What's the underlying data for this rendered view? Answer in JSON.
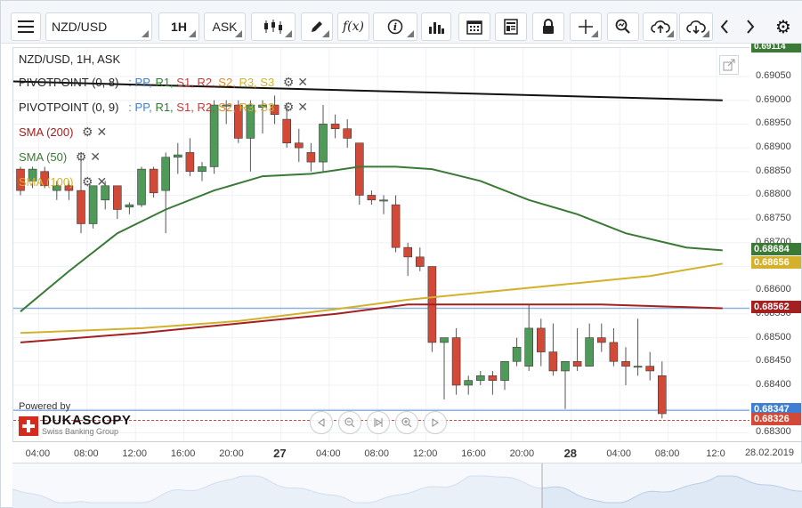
{
  "toolbar": {
    "instrument": "NZD/USD",
    "timeframe": "1H",
    "side": "ASK",
    "buttons": [
      {
        "name": "menu-icon"
      },
      {
        "name": "candle-type-icon"
      },
      {
        "name": "draw-pencil-icon"
      },
      {
        "name": "function-icon",
        "label": "f(x)"
      },
      {
        "name": "info-icon"
      },
      {
        "name": "bar-chart-icon"
      },
      {
        "name": "calendar-icon"
      },
      {
        "name": "news-icon"
      },
      {
        "name": "lock-icon"
      },
      {
        "name": "crosshair-icon"
      },
      {
        "name": "zoom-icon"
      },
      {
        "name": "upload-cloud-icon"
      },
      {
        "name": "download-cloud-icon"
      },
      {
        "name": "prev-arrow-icon"
      },
      {
        "name": "next-arrow-icon"
      },
      {
        "name": "gear-icon"
      }
    ]
  },
  "legend": {
    "title": "NZD/USD, 1H, ASK",
    "pivot1": {
      "label": "PIVOTPOINT (0, 8)",
      "levels": [
        ": PP,",
        "R1,",
        "S1,",
        "R2,",
        "S2,",
        "R3,",
        "S3"
      ]
    },
    "pivot2": {
      "label": "PIVOTPOINT (0, 9)",
      "levels": [
        ": PP,",
        "R1,",
        "S1,",
        "R2,",
        "S2,",
        "R3,",
        "S3"
      ]
    },
    "sma200": "SMA (200)",
    "sma50": "SMA (50)",
    "sma100": "SMA (100)"
  },
  "branding": {
    "powered_by": "Powered by",
    "company": "DUKASCOPY",
    "tagline": "Swiss Banking Group"
  },
  "colors": {
    "up": "#4f9a59",
    "down": "#d24a37",
    "sma50": "#3a7a35",
    "sma100": "#d4b12c",
    "sma200": "#a32020",
    "hline": "#8fb1de",
    "trend": "#111111",
    "pp": "#3f7fd3",
    "r": "#2f7d2f",
    "s": "#c93838",
    "r2": "#c93838",
    "s2": "#e08a1e",
    "r3": "#d4b12c",
    "s3": "#d4b12c"
  },
  "yaxis": {
    "ticks": [
      "0.69050",
      "0.69000",
      "0.68950",
      "0.68900",
      "0.68850",
      "0.68800",
      "0.68750",
      "0.68700",
      "0.68650",
      "0.68600",
      "0.68550",
      "0.68500",
      "0.68450",
      "0.68400",
      "0.68350",
      "0.68300"
    ],
    "tick_values": [
      0.6905,
      0.69,
      0.6895,
      0.689,
      0.6885,
      0.688,
      0.6875,
      0.687,
      0.6865,
      0.686,
      0.6855,
      0.685,
      0.6845,
      0.684,
      0.6835,
      0.683
    ],
    "top_cut": "0.69114",
    "badges": [
      {
        "value": "0.68684",
        "color": "#3a7a35",
        "price": 0.68684
      },
      {
        "value": "0.68656",
        "color": "#d4b12c",
        "price": 0.68656
      },
      {
        "value": "0.68562",
        "color": "#a32020",
        "price": 0.68562
      },
      {
        "value": "0.68347",
        "color": "#3f7fd3",
        "price": 0.68347
      },
      {
        "value": "0.68326",
        "color": "#d24a37",
        "price": 0.68326
      }
    ]
  },
  "xaxis": {
    "labels": [
      {
        "t": "04:00",
        "i": 1.5
      },
      {
        "t": "08:00",
        "i": 5.5
      },
      {
        "t": "12:00",
        "i": 9.5
      },
      {
        "t": "16:00",
        "i": 13.5
      },
      {
        "t": "20:00",
        "i": 17.5
      },
      {
        "t": "27",
        "i": 21.5,
        "major": true
      },
      {
        "t": "04:00",
        "i": 25.5
      },
      {
        "t": "08:00",
        "i": 29.5
      },
      {
        "t": "12:00",
        "i": 33.5
      },
      {
        "t": "16:00",
        "i": 37.5
      },
      {
        "t": "20:00",
        "i": 41.5
      },
      {
        "t": "28",
        "i": 45.5,
        "major": true
      },
      {
        "t": "04:00",
        "i": 49.5
      },
      {
        "t": "08:00",
        "i": 53.5
      },
      {
        "t": "12:0",
        "i": 57.5
      }
    ],
    "date_box": "28.02.2019"
  },
  "chart_data": {
    "type": "candlestick",
    "instrument": "NZD/USD",
    "timeframe": "1H",
    "ylim": [
      0.6828,
      0.6911
    ],
    "candles": [
      [
        0.68855,
        0.6886,
        0.688,
        0.6881
      ],
      [
        0.6883,
        0.6886,
        0.68815,
        0.68855
      ],
      [
        0.6885,
        0.6886,
        0.68815,
        0.6882
      ],
      [
        0.6881,
        0.6883,
        0.6879,
        0.6882
      ],
      [
        0.6882,
        0.6883,
        0.6879,
        0.6881
      ],
      [
        0.6881,
        0.6889,
        0.6872,
        0.6874
      ],
      [
        0.6874,
        0.6882,
        0.6873,
        0.6882
      ],
      [
        0.6879,
        0.6883,
        0.6877,
        0.6882
      ],
      [
        0.6882,
        0.6882,
        0.6875,
        0.6877
      ],
      [
        0.68775,
        0.68785,
        0.6876,
        0.6878
      ],
      [
        0.6878,
        0.6886,
        0.68775,
        0.68855
      ],
      [
        0.68855,
        0.6886,
        0.68795,
        0.68805
      ],
      [
        0.6881,
        0.6889,
        0.6872,
        0.6888
      ],
      [
        0.6888,
        0.6891,
        0.68845,
        0.68885
      ],
      [
        0.6889,
        0.6892,
        0.6884,
        0.6885
      ],
      [
        0.6885,
        0.6887,
        0.6883,
        0.6886
      ],
      [
        0.6886,
        0.69,
        0.68845,
        0.6899
      ],
      [
        0.6899,
        0.69,
        0.6895,
        0.6899
      ],
      [
        0.6899,
        0.69,
        0.6891,
        0.6892
      ],
      [
        0.6892,
        0.69,
        0.6885,
        0.6899
      ],
      [
        0.68985,
        0.69,
        0.6893,
        0.6899
      ],
      [
        0.6899,
        0.6901,
        0.6895,
        0.6897
      ],
      [
        0.6896,
        0.6899,
        0.689,
        0.6891
      ],
      [
        0.6891,
        0.6894,
        0.6887,
        0.689
      ],
      [
        0.6889,
        0.6891,
        0.6885,
        0.6887
      ],
      [
        0.6887,
        0.6899,
        0.6885,
        0.6895
      ],
      [
        0.6895,
        0.6897,
        0.6892,
        0.6894
      ],
      [
        0.6894,
        0.6896,
        0.689,
        0.6892
      ],
      [
        0.6891,
        0.6891,
        0.6878,
        0.688
      ],
      [
        0.688,
        0.6881,
        0.6878,
        0.6879
      ],
      [
        0.6879,
        0.688,
        0.6876,
        0.6879
      ],
      [
        0.6878,
        0.688,
        0.6868,
        0.6869
      ],
      [
        0.6869,
        0.687,
        0.6863,
        0.6867
      ],
      [
        0.6867,
        0.6869,
        0.6864,
        0.6865
      ],
      [
        0.6865,
        0.6865,
        0.6847,
        0.6849
      ],
      [
        0.6849,
        0.685,
        0.6837,
        0.685
      ],
      [
        0.685,
        0.6852,
        0.6838,
        0.684
      ],
      [
        0.684,
        0.6842,
        0.6838,
        0.6841
      ],
      [
        0.6841,
        0.6843,
        0.684,
        0.6842
      ],
      [
        0.6842,
        0.6843,
        0.6838,
        0.6841
      ],
      [
        0.6841,
        0.6845,
        0.6839,
        0.6845
      ],
      [
        0.6845,
        0.685,
        0.6844,
        0.6848
      ],
      [
        0.6844,
        0.6857,
        0.6843,
        0.6852
      ],
      [
        0.6852,
        0.6854,
        0.6844,
        0.6847
      ],
      [
        0.6847,
        0.6853,
        0.6842,
        0.6843
      ],
      [
        0.6843,
        0.6845,
        0.6835,
        0.6845
      ],
      [
        0.6845,
        0.6852,
        0.6843,
        0.6844
      ],
      [
        0.6844,
        0.6853,
        0.6844,
        0.685
      ],
      [
        0.685,
        0.6853,
        0.6847,
        0.6849
      ],
      [
        0.6849,
        0.6852,
        0.6844,
        0.6845
      ],
      [
        0.6845,
        0.6848,
        0.684,
        0.6844
      ],
      [
        0.6844,
        0.6854,
        0.6842,
        0.6844
      ],
      [
        0.6844,
        0.6847,
        0.6841,
        0.6843
      ],
      [
        0.6842,
        0.6845,
        0.6833,
        0.6834
      ]
    ],
    "sma50": [
      [
        0,
        0.68555
      ],
      [
        4,
        0.6864
      ],
      [
        8,
        0.6872
      ],
      [
        12,
        0.6877
      ],
      [
        16,
        0.6881
      ],
      [
        20,
        0.6884
      ],
      [
        24,
        0.68845
      ],
      [
        28,
        0.6886
      ],
      [
        31,
        0.6886
      ],
      [
        34,
        0.68855
      ],
      [
        38,
        0.6883
      ],
      [
        42,
        0.6879
      ],
      [
        46,
        0.6876
      ],
      [
        50,
        0.6872
      ],
      [
        55,
        0.6869
      ],
      [
        58,
        0.68684
      ]
    ],
    "sma100": [
      [
        0,
        0.6851
      ],
      [
        10,
        0.6852
      ],
      [
        18,
        0.68535
      ],
      [
        26,
        0.6856
      ],
      [
        32,
        0.6858
      ],
      [
        38,
        0.68595
      ],
      [
        46,
        0.68615
      ],
      [
        52,
        0.6863
      ],
      [
        58,
        0.68656
      ]
    ],
    "sma200": [
      [
        0,
        0.6849
      ],
      [
        10,
        0.6851
      ],
      [
        18,
        0.6853
      ],
      [
        26,
        0.6855
      ],
      [
        32,
        0.6857
      ],
      [
        40,
        0.6857
      ],
      [
        48,
        0.6857
      ],
      [
        58,
        0.68562
      ]
    ],
    "trendline": [
      [
        -1,
        0.6904
      ],
      [
        58,
        0.69
      ]
    ],
    "hlines": [
      0.68562,
      0.68347
    ],
    "current_price": 0.68326
  }
}
